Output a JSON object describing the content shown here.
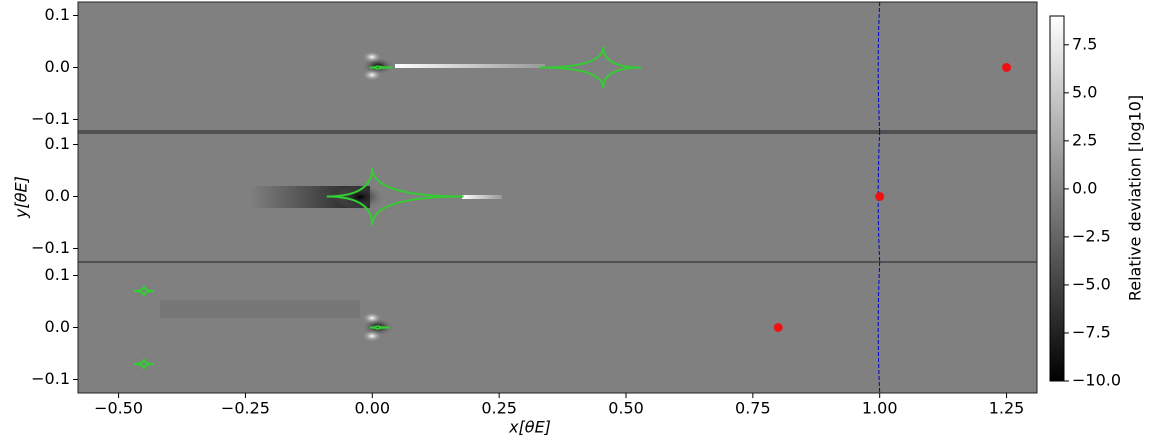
{
  "chart_data": {
    "type": "lensing-map-panels",
    "xlabel": "x[θE]",
    "ylabel": "y[θE]",
    "xlim": [
      -0.58,
      1.31
    ],
    "xticks": [
      {
        "value": -0.5,
        "label": "−0.50"
      },
      {
        "value": -0.25,
        "label": "−0.25"
      },
      {
        "value": 0,
        "label": "0.00"
      },
      {
        "value": 0.25,
        "label": "0.25"
      },
      {
        "value": 0.5,
        "label": "0.50"
      },
      {
        "value": 0.75,
        "label": "0.75"
      },
      {
        "value": 1,
        "label": "1.00"
      },
      {
        "value": 1.25,
        "label": "1.25"
      }
    ],
    "ylim": [
      -0.126,
      0.126
    ],
    "yticks": [
      {
        "value": -0.1,
        "label": "−0.1"
      },
      {
        "value": 0,
        "label": "0.0"
      },
      {
        "value": 0.1,
        "label": "0.1"
      }
    ],
    "einstein_ring_x": 1,
    "ring_color": "#0000cc",
    "caustic_color": "#33cc33",
    "point_color": "#ee1111",
    "panels": [
      {
        "point": {
          "x": 1.25,
          "y": 0
        },
        "caustics": [
          {
            "x_left": -0.005,
            "x_center": 0.01,
            "x_right": 0.04,
            "y_center": 0,
            "half_height": 0.004
          },
          {
            "x_left": 0.33,
            "x_center": 0.455,
            "x_right": 0.53,
            "y_center": 0,
            "half_height": 0.04
          }
        ]
      },
      {
        "point": {
          "x": 1.0,
          "y": 0
        },
        "caustics": [
          {
            "x_left": -0.09,
            "x_center": 0.0,
            "x_right": 0.18,
            "y_center": 0,
            "half_height": 0.055
          }
        ]
      },
      {
        "point": {
          "x": 0.8,
          "y": 0
        },
        "caustics": [
          {
            "x_left": -0.005,
            "x_center": 0.01,
            "x_right": 0.035,
            "y_center": 0,
            "half_height": 0.004
          },
          {
            "x_left": -0.47,
            "x_center": -0.45,
            "x_right": -0.43,
            "y_center": 0.07,
            "half_height": 0.01
          },
          {
            "x_left": -0.47,
            "x_center": -0.45,
            "x_right": -0.43,
            "y_center": -0.07,
            "half_height": 0.01
          }
        ]
      }
    ],
    "colorbar": {
      "label": "Relative deviation [log10]",
      "clim": [
        -10,
        9
      ],
      "ticks": [
        {
          "value": -10,
          "label": "−10.0"
        },
        {
          "value": -7.5,
          "label": "−7.5"
        },
        {
          "value": -5,
          "label": "−5.0"
        },
        {
          "value": -2.5,
          "label": "−2.5"
        },
        {
          "value": 0,
          "label": "0.0"
        },
        {
          "value": 2.5,
          "label": "2.5"
        },
        {
          "value": 5,
          "label": "5.0"
        },
        {
          "value": 7.5,
          "label": "7.5"
        }
      ]
    }
  }
}
